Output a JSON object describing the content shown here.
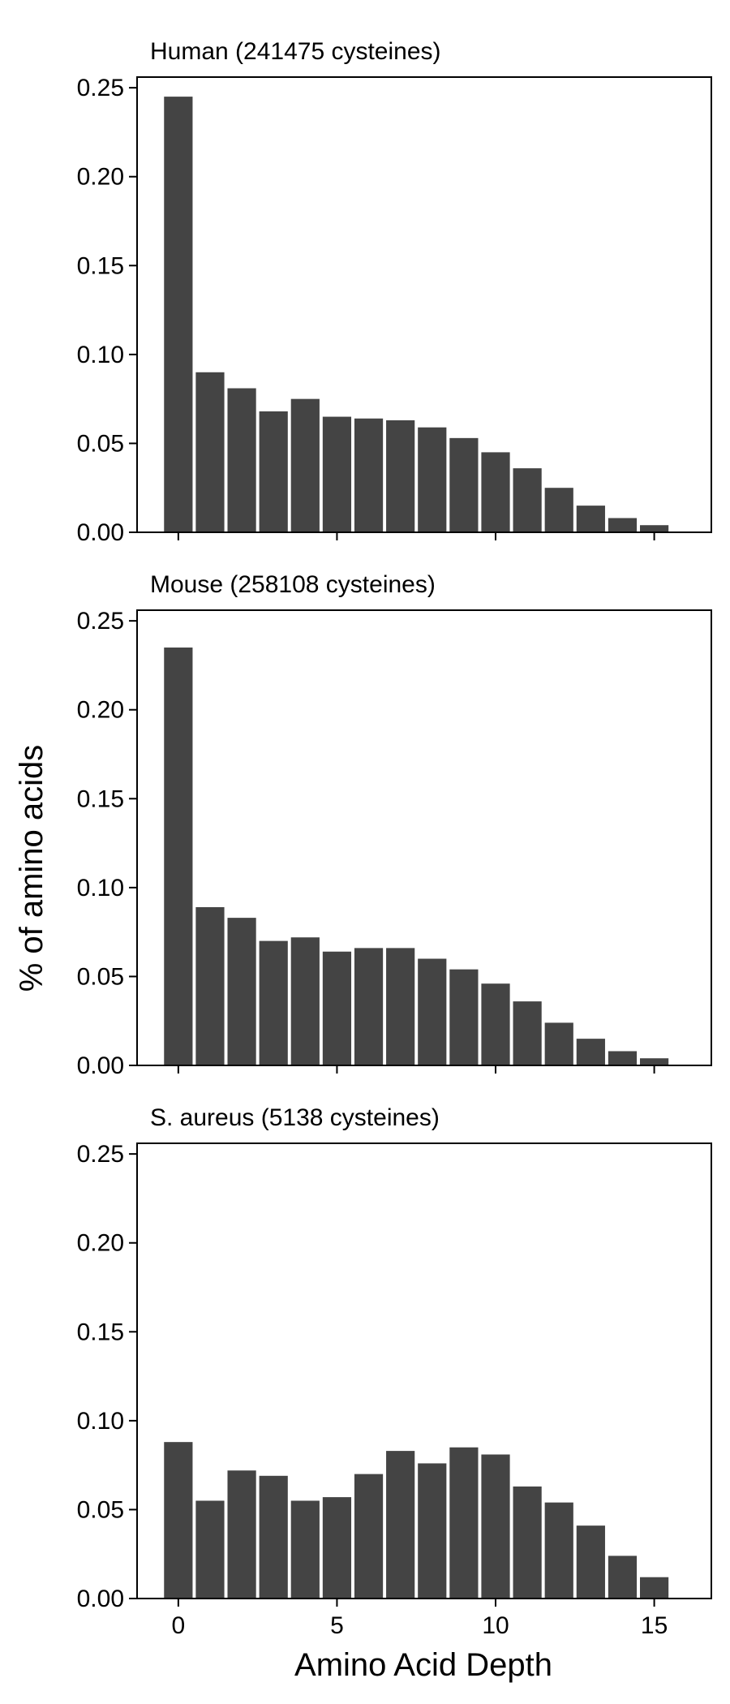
{
  "chart_data": {
    "type": "bar",
    "xlabel": "Amino Acid Depth",
    "ylabel": "% of amino acids",
    "categories": [
      0,
      1,
      2,
      3,
      4,
      5,
      6,
      7,
      8,
      9,
      10,
      11,
      12,
      13,
      14,
      15
    ],
    "xticks": [
      0,
      5,
      10,
      15
    ],
    "xlim": [
      -1.3,
      16.8
    ],
    "ylim": [
      0,
      0.256
    ],
    "yticks": [
      "0.00",
      "0.05",
      "0.10",
      "0.15",
      "0.20",
      "0.25"
    ],
    "bar_color": "#444444",
    "panels": [
      {
        "title": "Human (241475 cysteines)",
        "values": [
          0.245,
          0.09,
          0.081,
          0.068,
          0.075,
          0.065,
          0.064,
          0.063,
          0.059,
          0.053,
          0.045,
          0.036,
          0.025,
          0.015,
          0.008,
          0.004
        ]
      },
      {
        "title": "Mouse (258108 cysteines)",
        "values": [
          0.235,
          0.089,
          0.083,
          0.07,
          0.072,
          0.064,
          0.066,
          0.066,
          0.06,
          0.054,
          0.046,
          0.036,
          0.024,
          0.015,
          0.008,
          0.004
        ]
      },
      {
        "title": "S. aureus (5138 cysteines)",
        "values": [
          0.088,
          0.055,
          0.072,
          0.069,
          0.055,
          0.057,
          0.07,
          0.083,
          0.076,
          0.085,
          0.081,
          0.063,
          0.054,
          0.041,
          0.024,
          0.012
        ]
      }
    ]
  }
}
